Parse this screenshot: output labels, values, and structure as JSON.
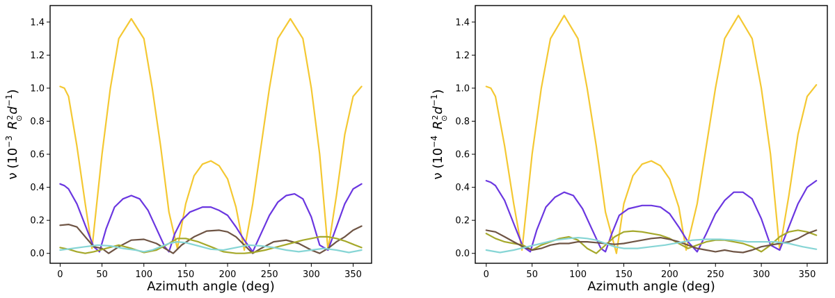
{
  "chart_data": [
    {
      "type": "line",
      "panel": "left",
      "xlabel": "Azimuth angle (deg)",
      "ylabel_parts": {
        "prefix": "ν (10",
        "exp": "−3",
        "unit": "R",
        "sub": "⊙",
        "sup": "2",
        "tail": "d",
        "tailsup": "−1",
        "close": ")"
      },
      "xlim": [
        -12,
        372
      ],
      "ylim": [
        -0.06,
        1.5
      ],
      "xticks": [
        0,
        50,
        100,
        150,
        200,
        250,
        300,
        350
      ],
      "xtick_labels": [
        "0",
        "50",
        "100",
        "150",
        "200",
        "250",
        "300",
        "350"
      ],
      "yticks": [
        0.0,
        0.2,
        0.4,
        0.6,
        0.8,
        1.0,
        1.2,
        1.4
      ],
      "ytick_labels": [
        "0.0",
        "0.2",
        "0.4",
        "0.6",
        "0.8",
        "1.0",
        "1.2",
        "1.4"
      ],
      "series": [
        {
          "name": "yellow",
          "color": "#f4c832",
          "x": [
            0,
            5,
            10,
            20,
            30,
            38,
            50,
            60,
            70,
            85,
            100,
            110,
            120,
            130,
            140,
            150,
            160,
            170,
            180,
            190,
            200,
            210,
            220,
            230,
            240,
            250,
            260,
            275,
            290,
            300,
            310,
            320,
            330,
            340,
            350,
            360
          ],
          "y": [
            1.01,
            1.0,
            0.95,
            0.65,
            0.3,
            0.03,
            0.6,
            1.0,
            1.3,
            1.42,
            1.3,
            1.0,
            0.65,
            0.25,
            0.03,
            0.3,
            0.47,
            0.54,
            0.56,
            0.53,
            0.45,
            0.28,
            0.02,
            0.3,
            0.65,
            1.0,
            1.3,
            1.42,
            1.3,
            1.0,
            0.6,
            0.02,
            0.35,
            0.72,
            0.95,
            1.01
          ]
        },
        {
          "name": "purple",
          "color": "#6a36e0",
          "x": [
            0,
            5,
            10,
            20,
            30,
            40,
            47,
            55,
            65,
            75,
            85,
            95,
            105,
            115,
            125,
            130,
            137,
            145,
            155,
            170,
            180,
            190,
            200,
            210,
            220,
            230,
            240,
            250,
            260,
            270,
            280,
            290,
            300,
            310,
            320,
            330,
            340,
            350,
            360
          ],
          "y": [
            0.42,
            0.41,
            0.39,
            0.3,
            0.17,
            0.04,
            0.01,
            0.15,
            0.28,
            0.33,
            0.35,
            0.33,
            0.26,
            0.15,
            0.04,
            0.01,
            0.12,
            0.2,
            0.25,
            0.28,
            0.28,
            0.26,
            0.23,
            0.16,
            0.08,
            0.01,
            0.12,
            0.23,
            0.31,
            0.35,
            0.36,
            0.33,
            0.22,
            0.05,
            0.02,
            0.16,
            0.3,
            0.39,
            0.42
          ]
        },
        {
          "name": "brown",
          "color": "#6e5444",
          "x": [
            0,
            10,
            20,
            30,
            40,
            50,
            58,
            70,
            85,
            100,
            115,
            125,
            135,
            145,
            160,
            175,
            190,
            200,
            210,
            220,
            230,
            240,
            255,
            270,
            285,
            300,
            310,
            320,
            330,
            340,
            350,
            360
          ],
          "y": [
            0.17,
            0.175,
            0.16,
            0.1,
            0.04,
            0.03,
            0.0,
            0.04,
            0.08,
            0.085,
            0.06,
            0.03,
            0.0,
            0.05,
            0.1,
            0.135,
            0.14,
            0.13,
            0.1,
            0.05,
            0.0,
            0.03,
            0.07,
            0.08,
            0.06,
            0.02,
            0.0,
            0.03,
            0.07,
            0.1,
            0.14,
            0.165
          ]
        },
        {
          "name": "olive",
          "color": "#a5a82a",
          "x": [
            0,
            10,
            20,
            30,
            40,
            55,
            70,
            85,
            100,
            115,
            130,
            140,
            150,
            165,
            180,
            195,
            210,
            220,
            230,
            245,
            260,
            275,
            290,
            300,
            310,
            320,
            330,
            340,
            350,
            360
          ],
          "y": [
            0.035,
            0.025,
            0.01,
            0.0,
            0.01,
            0.03,
            0.05,
            0.03,
            0.005,
            0.02,
            0.06,
            0.09,
            0.09,
            0.07,
            0.04,
            0.01,
            0.0,
            0.0,
            0.005,
            0.02,
            0.04,
            0.06,
            0.08,
            0.09,
            0.1,
            0.1,
            0.09,
            0.075,
            0.055,
            0.035
          ]
        },
        {
          "name": "cyan",
          "color": "#86d5d5",
          "x": [
            0,
            15,
            30,
            45,
            60,
            75,
            90,
            100,
            110,
            120,
            130,
            140,
            150,
            165,
            180,
            195,
            210,
            225,
            240,
            255,
            270,
            285,
            300,
            315,
            330,
            345,
            360
          ],
          "y": [
            0.02,
            0.03,
            0.04,
            0.05,
            0.045,
            0.03,
            0.02,
            0.01,
            0.02,
            0.04,
            0.06,
            0.07,
            0.065,
            0.045,
            0.025,
            0.02,
            0.035,
            0.05,
            0.045,
            0.035,
            0.02,
            0.01,
            0.02,
            0.03,
            0.02,
            0.005,
            0.02
          ]
        }
      ]
    },
    {
      "type": "line",
      "panel": "right",
      "xlabel": "Azimuth angle (deg)",
      "ylabel_parts": {
        "prefix": "ν (10",
        "exp": "−4",
        "unit": "R",
        "sub": "⊙",
        "sup": "2",
        "tail": "d",
        "tailsup": "−1",
        "close": ")"
      },
      "xlim": [
        -12,
        372
      ],
      "ylim": [
        -0.06,
        1.5
      ],
      "xticks": [
        0,
        50,
        100,
        150,
        200,
        250,
        300,
        350
      ],
      "xtick_labels": [
        "0",
        "50",
        "100",
        "150",
        "200",
        "250",
        "300",
        "350"
      ],
      "yticks": [
        0.0,
        0.2,
        0.4,
        0.6,
        0.8,
        1.0,
        1.2,
        1.4
      ],
      "ytick_labels": [
        "0.0",
        "0.2",
        "0.4",
        "0.6",
        "0.8",
        "1.0",
        "1.2",
        "1.4"
      ],
      "series": [
        {
          "name": "yellow",
          "color": "#f4c832",
          "x": [
            0,
            5,
            10,
            20,
            30,
            39,
            50,
            60,
            70,
            85,
            100,
            110,
            120,
            130,
            142,
            150,
            160,
            170,
            180,
            190,
            200,
            210,
            218,
            230,
            240,
            250,
            260,
            275,
            290,
            300,
            310,
            320,
            330,
            340,
            350,
            360
          ],
          "y": [
            1.01,
            1.0,
            0.95,
            0.65,
            0.3,
            0.02,
            0.6,
            1.0,
            1.3,
            1.44,
            1.3,
            1.0,
            0.65,
            0.25,
            0.0,
            0.3,
            0.47,
            0.54,
            0.56,
            0.53,
            0.45,
            0.28,
            0.02,
            0.3,
            0.65,
            1.0,
            1.3,
            1.44,
            1.3,
            1.0,
            0.6,
            0.02,
            0.35,
            0.72,
            0.95,
            1.02
          ]
        },
        {
          "name": "purple",
          "color": "#6a36e0",
          "x": [
            0,
            5,
            10,
            20,
            30,
            40,
            48,
            55,
            65,
            75,
            85,
            95,
            105,
            115,
            125,
            130,
            137,
            145,
            155,
            170,
            180,
            190,
            200,
            210,
            220,
            230,
            240,
            250,
            260,
            270,
            280,
            290,
            300,
            310,
            320,
            330,
            340,
            350,
            360
          ],
          "y": [
            0.44,
            0.43,
            0.41,
            0.32,
            0.18,
            0.04,
            0.01,
            0.14,
            0.28,
            0.34,
            0.37,
            0.35,
            0.27,
            0.15,
            0.03,
            0.01,
            0.12,
            0.23,
            0.27,
            0.29,
            0.29,
            0.28,
            0.24,
            0.16,
            0.07,
            0.01,
            0.12,
            0.24,
            0.32,
            0.37,
            0.37,
            0.33,
            0.21,
            0.05,
            0.02,
            0.16,
            0.3,
            0.4,
            0.44
          ]
        },
        {
          "name": "olive",
          "color": "#a5a82a",
          "x": [
            0,
            10,
            20,
            30,
            40,
            50,
            60,
            70,
            80,
            90,
            100,
            110,
            120,
            130,
            140,
            150,
            160,
            170,
            180,
            190,
            200,
            210,
            220,
            230,
            240,
            250,
            260,
            270,
            280,
            290,
            300,
            310,
            320,
            330,
            340,
            350,
            360
          ],
          "y": [
            0.12,
            0.09,
            0.07,
            0.06,
            0.05,
            0.02,
            0.05,
            0.07,
            0.09,
            0.1,
            0.08,
            0.03,
            0.0,
            0.05,
            0.1,
            0.13,
            0.135,
            0.13,
            0.12,
            0.11,
            0.09,
            0.06,
            0.03,
            0.05,
            0.07,
            0.08,
            0.08,
            0.07,
            0.06,
            0.04,
            0.01,
            0.05,
            0.1,
            0.13,
            0.14,
            0.13,
            0.11
          ]
        },
        {
          "name": "brown",
          "color": "#6e5444",
          "x": [
            0,
            10,
            20,
            30,
            40,
            50,
            60,
            70,
            80,
            90,
            100,
            110,
            120,
            130,
            140,
            150,
            160,
            170,
            180,
            190,
            200,
            210,
            220,
            230,
            240,
            250,
            260,
            270,
            280,
            290,
            300,
            310,
            320,
            330,
            340,
            350,
            360
          ],
          "y": [
            0.14,
            0.13,
            0.1,
            0.07,
            0.04,
            0.02,
            0.03,
            0.05,
            0.06,
            0.06,
            0.07,
            0.07,
            0.065,
            0.06,
            0.055,
            0.06,
            0.07,
            0.08,
            0.09,
            0.095,
            0.085,
            0.07,
            0.05,
            0.03,
            0.02,
            0.01,
            0.02,
            0.01,
            0.005,
            0.02,
            0.04,
            0.05,
            0.06,
            0.07,
            0.09,
            0.12,
            0.14
          ]
        },
        {
          "name": "cyan",
          "color": "#86d5d5",
          "x": [
            0,
            15,
            30,
            45,
            60,
            75,
            90,
            100,
            110,
            120,
            130,
            140,
            150,
            165,
            180,
            195,
            210,
            225,
            240,
            255,
            270,
            285,
            300,
            315,
            330,
            345,
            360
          ],
          "y": [
            0.02,
            0.005,
            0.02,
            0.04,
            0.06,
            0.08,
            0.09,
            0.095,
            0.09,
            0.08,
            0.06,
            0.04,
            0.03,
            0.03,
            0.04,
            0.05,
            0.065,
            0.08,
            0.085,
            0.085,
            0.08,
            0.07,
            0.07,
            0.07,
            0.06,
            0.04,
            0.025
          ]
        }
      ]
    }
  ]
}
